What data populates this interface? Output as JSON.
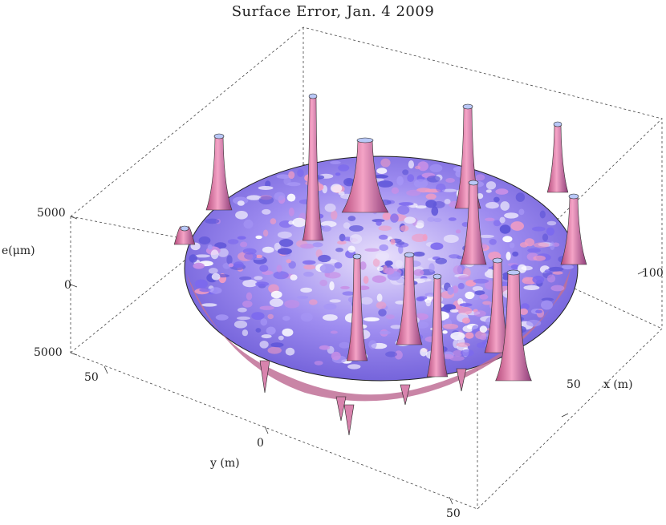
{
  "chart_data": {
    "type": "surface3d",
    "title": "Surface Error, Jan. 4 2009",
    "xlabel": "x (m)",
    "ylabel": "y (m)",
    "zlabel": "e(μm)",
    "x_ticks": [
      "50",
      "100"
    ],
    "y_ticks": [
      "50",
      "0",
      "50"
    ],
    "z_ticks": [
      "5000",
      "0",
      "5000"
    ],
    "zlim": [
      -5000,
      5000
    ],
    "colors": {
      "low": "#7b68ee",
      "mid": "#e9e4f7",
      "high": "#f28cb8",
      "edge": "#1a1a1a"
    }
  }
}
